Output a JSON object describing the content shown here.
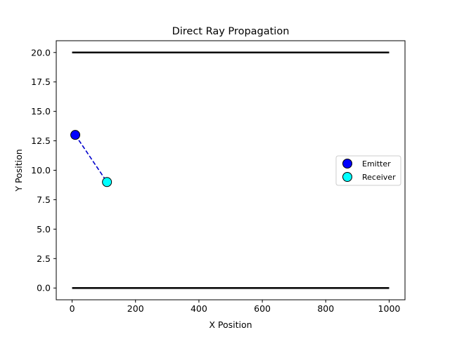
{
  "chart_data": {
    "type": "scatter",
    "title": "Direct Ray Propagation",
    "xlabel": "X Position",
    "ylabel": "Y Position",
    "xlim": [
      -50,
      1050
    ],
    "ylim": [
      -1,
      21
    ],
    "xticks": [
      0,
      200,
      400,
      600,
      800,
      1000
    ],
    "xtick_labels": [
      "0",
      "200",
      "400",
      "600",
      "800",
      "1000"
    ],
    "yticks": [
      0,
      2.5,
      5,
      7.5,
      10,
      12.5,
      15,
      17.5,
      20
    ],
    "ytick_labels": [
      "0.0",
      "2.5",
      "5.0",
      "7.5",
      "10.0",
      "12.5",
      "15.0",
      "17.5",
      "20.0"
    ],
    "grid": false,
    "legend_position": "center-right",
    "boundaries": [
      {
        "x": [
          0,
          1000
        ],
        "y": [
          20,
          20
        ],
        "color": "#000000"
      },
      {
        "x": [
          0,
          1000
        ],
        "y": [
          0,
          0
        ],
        "color": "#000000"
      }
    ],
    "ray": {
      "x": [
        10,
        110
      ],
      "y": [
        13,
        9
      ],
      "color": "#0000cc",
      "style": "dashed"
    },
    "series": [
      {
        "name": "Emitter",
        "x": [
          10
        ],
        "y": [
          13
        ],
        "color": "#0000ff"
      },
      {
        "name": "Receiver",
        "x": [
          110
        ],
        "y": [
          9
        ],
        "color": "#00ffff"
      }
    ]
  }
}
